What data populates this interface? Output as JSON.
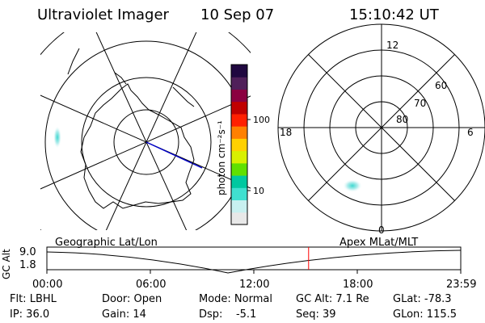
{
  "header": {
    "instrument": "Ultraviolet Imager",
    "date": "10 Sep 07",
    "time": "15:10:42 UT"
  },
  "colorbar": {
    "unit_label": "photon cm⁻²s⁻¹",
    "ticks": [
      "100",
      "10"
    ],
    "scale": "log",
    "colors": [
      "#e8e8e8",
      "#c8f0f0",
      "#40e0d0",
      "#00c8a0",
      "#60e000",
      "#d8f000",
      "#ffd000",
      "#ff8000",
      "#ff2000",
      "#c00000",
      "#8b0040",
      "#50205a",
      "#200840"
    ]
  },
  "geo_map": {
    "label": "Geographic Lat/Lon"
  },
  "polar_plot": {
    "label": "Apex MLat/MLT",
    "mlt_labels": {
      "top": "12",
      "left": "18",
      "right": "6",
      "bottom": "0"
    },
    "lat_labels": [
      "60",
      "70",
      "80"
    ]
  },
  "altitude_strip": {
    "ylabel": "GC Alt",
    "yticks": [
      "9.0",
      "1.8"
    ],
    "xticks": [
      "00:00",
      "06:00",
      "12:00",
      "18:00",
      "23:59"
    ],
    "current_time_marker": "15:10",
    "marker_color": "#ff0000"
  },
  "info": {
    "filter": "Flt: LBHL",
    "ip": "IP: 36.0",
    "door": "Door: Open",
    "gain": "Gain: 14",
    "mode": "Mode: Normal",
    "dsp": "Dsp:    -5.1",
    "gc_alt": "GC Alt: 7.1 Re",
    "seq": "Seq: 39",
    "glat": "GLat: -78.3",
    "glon": "GLon: 115.5"
  }
}
